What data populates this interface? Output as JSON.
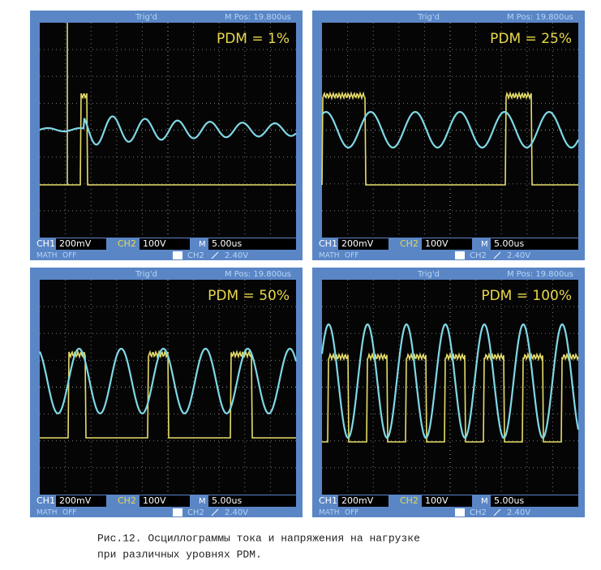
{
  "panels": [
    {
      "trig_status": "Trig'd",
      "m_pos": "M Pos: 19.800us",
      "label": "PDM = 1%",
      "ch1": "CH1",
      "ch1_scale": "200mV",
      "ch2": "CH2",
      "ch2_scale": "100V",
      "timebase_marker": "M",
      "timebase": "5.00us",
      "math": "MATH",
      "math_state": "OFF",
      "trig_source": "CH2",
      "trig_level": "2.40V"
    },
    {
      "trig_status": "Trig'd",
      "m_pos": "M Pos: 19.800us",
      "label": "PDM = 25%",
      "ch1": "CH1",
      "ch1_scale": "200mV",
      "ch2": "CH2",
      "ch2_scale": "100V",
      "timebase_marker": "M",
      "timebase": "5.00us",
      "math": "MATH",
      "math_state": "OFF",
      "trig_source": "CH2",
      "trig_level": "2.40V"
    },
    {
      "trig_status": "Trig'd",
      "m_pos": "M Pos: 19.800us",
      "label": "PDM = 50%",
      "ch1": "CH1",
      "ch1_scale": "200mV",
      "ch2": "CH2",
      "ch2_scale": "100V",
      "timebase_marker": "M",
      "timebase": "5.00us",
      "math": "MATH",
      "math_state": "OFF",
      "trig_source": "CH2",
      "trig_level": "2.40V"
    },
    {
      "trig_status": "Trig'd",
      "m_pos": "M Pos: 19.800us",
      "label": "PDM = 100%",
      "ch1": "CH1",
      "ch1_scale": "200mV",
      "ch2": "CH2",
      "ch2_scale": "100V",
      "timebase_marker": "M",
      "timebase": "5.00us",
      "math": "MATH",
      "math_state": "OFF",
      "trig_source": "CH2",
      "trig_level": "2.40V"
    }
  ],
  "caption": [
    "Рис.12. Осциллограммы тока и напряжения на нагрузке",
    "при различных уровнях PDM."
  ]
}
